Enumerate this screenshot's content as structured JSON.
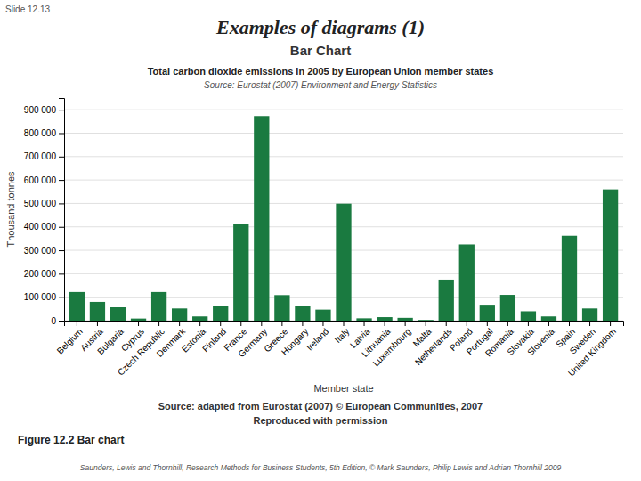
{
  "title": "Examples of diagrams (1)",
  "subtitle": "Bar Chart",
  "annotations": [
    "Slide 12.13",
    "Source: adapted from Eurostat (2007) © European Communities, 2007",
    "Reproduced with permission",
    "Figure 12.2  Bar chart",
    "Saunders, Lewis and Thornhill, Research Methods for Business Students, 5th Edition, © Mark Saunders, Philip Lewis and Adrian Thornhill 2009"
  ],
  "chart_data": {
    "type": "bar",
    "title": "Total carbon dioxide emissions in 2005 by European Union member states",
    "subtitle": "Source: Eurostat (2007) Environment and Energy Statistics",
    "xlabel": "Member state",
    "ylabel": "Thousand tonnes",
    "categories": [
      "Belgium",
      "Austria",
      "Bulgaria",
      "Cyprus",
      "Czech Republic",
      "Denmark",
      "Estonia",
      "Finland",
      "France",
      "Germany",
      "Greece",
      "Hungary",
      "Ireland",
      "Italy",
      "Latvia",
      "Lithuania",
      "Luxembourg",
      "Malta",
      "Netherlands",
      "Poland",
      "Portugal",
      "Romania",
      "Slovakia",
      "Slovenia",
      "Spain",
      "Sweden",
      "United Kingdom"
    ],
    "values": [
      122000,
      80000,
      57000,
      9000,
      122000,
      52000,
      18000,
      62000,
      412000,
      873000,
      109000,
      62000,
      47000,
      499000,
      10000,
      15000,
      12000,
      3000,
      175000,
      325000,
      68000,
      110000,
      40000,
      18000,
      362000,
      52000,
      560000
    ],
    "color": "#1a7a40",
    "ylim": [
      0,
      950000
    ],
    "yticks": [
      0,
      {
        "value": 100000,
        "label": "100 000"
      },
      {
        "value": 200000,
        "label": "200 000"
      },
      {
        "value": 300000,
        "label": "300 000"
      },
      {
        "value": 400000,
        "label": "400 000"
      },
      {
        "value": 500000,
        "label": "500 000"
      },
      {
        "value": 600000,
        "label": "600 000"
      },
      {
        "value": 700000,
        "label": "700 000"
      },
      {
        "value": 800000,
        "label": "800 000"
      },
      {
        "value": 900000,
        "label": "900 000"
      }
    ],
    "grid": true
  }
}
